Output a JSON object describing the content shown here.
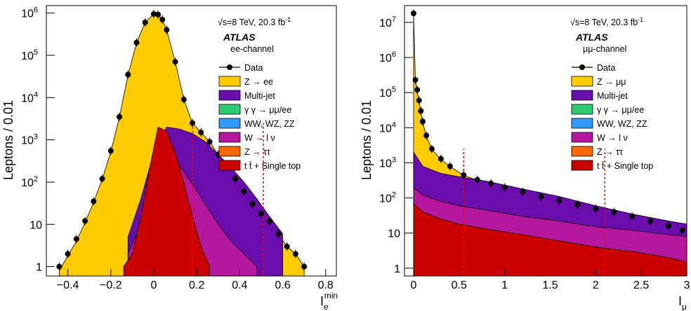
{
  "panels": [
    {
      "energy_label": "√s=8 TeV, 20.3 fb",
      "energy_sup": "-1",
      "atlas_label": "ATLAS",
      "channel_label": "ee-channel",
      "ylabel": "Leptons / 0.01",
      "xlabel": "I",
      "xlabel_sub": "e",
      "xlabel_sup": "min",
      "x_ticks": [
        "−0.4",
        "−0.2",
        "0",
        "0.2",
        "0.4",
        "0.6",
        "0.8"
      ],
      "y_ticks_base": [
        "1",
        "10",
        "10",
        "10",
        "10",
        "10",
        "10"
      ],
      "y_ticks_exp": [
        "",
        "",
        "2",
        "3",
        "4",
        "5",
        "6"
      ],
      "legend": [
        {
          "label": "Data",
          "kind": "marker"
        },
        {
          "label": "Z → ee",
          "kind": "box",
          "color": "#ffcc00"
        },
        {
          "label": "Multi-jet",
          "kind": "box",
          "color": "#6a0dad"
        },
        {
          "label": "γ γ  → μμ/ee",
          "kind": "box",
          "color": "#2ecc71"
        },
        {
          "label": "WW, WZ, ZZ",
          "kind": "box",
          "color": "#3399ff"
        },
        {
          "label": "W → l ν",
          "kind": "box",
          "color": "#b5179e"
        },
        {
          "label": "Z → ττ",
          "kind": "box",
          "color": "#ff6600"
        },
        {
          "label": "t t̄ + Single top",
          "kind": "box",
          "color": "#cc0000"
        }
      ]
    },
    {
      "energy_label": "√s=8 TeV, 20.3 fb",
      "energy_sup": "-1",
      "atlas_label": "ATLAS",
      "channel_label": "μμ-channel",
      "ylabel": "Leptons / 0.01",
      "xlabel": "I",
      "xlabel_sub": "μ",
      "xlabel_sup": "",
      "x_ticks": [
        "0",
        "0.5",
        "1",
        "1.5",
        "2",
        "2.5",
        "3"
      ],
      "y_ticks_base": [
        "1",
        "10",
        "10",
        "10",
        "10",
        "10",
        "10",
        "10"
      ],
      "y_ticks_exp": [
        "",
        "",
        "2",
        "3",
        "4",
        "5",
        "6",
        "7"
      ],
      "legend": [
        {
          "label": "Data",
          "kind": "marker"
        },
        {
          "label": "Z → μμ",
          "kind": "box",
          "color": "#ffcc00"
        },
        {
          "label": "Multi-jet",
          "kind": "box",
          "color": "#6a0dad"
        },
        {
          "label": "γ γ  → μμ/ee",
          "kind": "box",
          "color": "#2ecc71"
        },
        {
          "label": "WW, WZ, ZZ",
          "kind": "box",
          "color": "#3399ff"
        },
        {
          "label": "W → l ν",
          "kind": "box",
          "color": "#b5179e"
        },
        {
          "label": "Z → ττ",
          "kind": "box",
          "color": "#ff6600"
        },
        {
          "label": "t t̄ + Single top",
          "kind": "box",
          "color": "#cc0000"
        }
      ]
    }
  ],
  "chart_data": [
    {
      "type": "area",
      "scale": "log-y",
      "xlim": [
        -0.5,
        0.85
      ],
      "ylim": [
        0.6,
        1500000
      ],
      "cut_lines_x": [
        0.18,
        0.51
      ],
      "cut_line_color": "#ff0000",
      "data_points": {
        "x": [
          -0.44,
          -0.4,
          -0.36,
          -0.32,
          -0.28,
          -0.24,
          -0.2,
          -0.16,
          -0.12,
          -0.08,
          -0.04,
          0.0,
          0.02,
          0.04,
          0.06,
          0.1,
          0.14,
          0.18,
          0.22,
          0.26,
          0.3,
          0.34,
          0.38,
          0.42,
          0.46,
          0.5,
          0.54,
          0.58,
          0.62,
          0.66,
          0.7
        ],
        "y": [
          1.0,
          2.0,
          4.5,
          12,
          35,
          120,
          550,
          3500,
          35000,
          200000,
          600000,
          950000,
          920000,
          700000,
          400000,
          70000,
          9000,
          2500,
          1500,
          900,
          450,
          250,
          120,
          60,
          30,
          18,
          12,
          6,
          3,
          2,
          1
        ]
      },
      "stack_totals": {
        "x": [
          -0.44,
          -0.4,
          -0.36,
          -0.32,
          -0.28,
          -0.24,
          -0.2,
          -0.16,
          -0.12,
          -0.08,
          -0.04,
          0.0,
          0.02,
          0.04,
          0.06,
          0.1,
          0.14,
          0.18,
          0.22,
          0.26,
          0.3,
          0.34,
          0.38,
          0.42,
          0.46,
          0.5,
          0.54,
          0.58,
          0.62,
          0.66,
          0.7
        ],
        "y": [
          0.8,
          1.8,
          4.0,
          11,
          33,
          115,
          520,
          3400,
          34000,
          198000,
          600000,
          950000,
          920000,
          700000,
          400000,
          70000,
          9000,
          2500,
          1500,
          900,
          450,
          250,
          120,
          60,
          30,
          18,
          12,
          6,
          3,
          2,
          1
        ]
      },
      "backgrounds": [
        {
          "name": "Multi-jet",
          "color": "#6a0dad",
          "x": [
            -0.12,
            -0.06,
            0.0,
            0.06,
            0.12,
            0.18,
            0.24,
            0.3,
            0.36,
            0.42,
            0.48,
            0.54,
            0.6
          ],
          "y": [
            5,
            40,
            500,
            2000,
            1800,
            1400,
            900,
            450,
            220,
            100,
            40,
            15,
            6
          ]
        },
        {
          "name": "W → l ν",
          "color": "#b5179e",
          "x": [
            -0.12,
            -0.06,
            0.0,
            0.06,
            0.12,
            0.18,
            0.24,
            0.3,
            0.36,
            0.42,
            0.48
          ],
          "y": [
            2,
            10,
            150,
            400,
            250,
            90,
            30,
            10,
            4,
            2,
            1
          ]
        },
        {
          "name": "t t̄ + Single top",
          "color": "#cc0000",
          "x": [
            -0.14,
            -0.1,
            -0.06,
            -0.02,
            0.02,
            0.06,
            0.1,
            0.14,
            0.18,
            0.22,
            0.26
          ],
          "y": [
            1,
            2,
            15,
            200,
            2000,
            1600,
            500,
            100,
            15,
            3,
            1
          ]
        }
      ]
    },
    {
      "type": "area",
      "scale": "log-y",
      "xlim": [
        -0.1,
        3.0
      ],
      "ylim": [
        0.6,
        30000000
      ],
      "cut_lines_x": [
        0.55,
        2.1
      ],
      "cut_line_color": "#ff0000",
      "data_points": {
        "x": [
          0.0,
          0.02,
          0.04,
          0.06,
          0.08,
          0.1,
          0.14,
          0.2,
          0.3,
          0.4,
          0.55,
          0.7,
          0.85,
          1.0,
          1.2,
          1.4,
          1.6,
          1.8,
          2.0,
          2.2,
          2.4,
          2.6,
          2.8,
          2.95
        ],
        "y": [
          18000000,
          230000,
          120000,
          60000,
          30000,
          15000,
          6000,
          2500,
          1300,
          800,
          450,
          330,
          260,
          200,
          150,
          110,
          85,
          65,
          50,
          40,
          30,
          22,
          16,
          12
        ]
      },
      "stack_totals": {
        "x": [
          0.0,
          0.02,
          0.04,
          0.06,
          0.08,
          0.1,
          0.14,
          0.2,
          0.3,
          0.4,
          0.55,
          0.7,
          0.85,
          1.0,
          1.2,
          1.4,
          1.6,
          1.8,
          2.0,
          2.2,
          2.4,
          2.6,
          2.8,
          2.95
        ],
        "y": [
          18000000,
          220000,
          110000,
          55000,
          28000,
          14000,
          5800,
          2400,
          1250,
          780,
          440,
          320,
          250,
          195,
          145,
          105,
          82,
          62,
          48,
          38,
          29,
          21,
          15,
          11
        ]
      },
      "backgrounds": [
        {
          "name": "Multi-jet",
          "color": "#6a0dad",
          "x": [
            0.0,
            0.1,
            0.3,
            0.5,
            0.8,
            1.2,
            1.6,
            2.0,
            2.4,
            2.8,
            3.0
          ],
          "y": [
            2000,
            800,
            500,
            400,
            300,
            180,
            110,
            60,
            35,
            22,
            18
          ]
        },
        {
          "name": "W → l ν",
          "color": "#b5179e",
          "x": [
            0.0,
            0.1,
            0.3,
            0.5,
            0.8,
            1.2,
            1.6,
            2.0,
            2.4,
            2.8,
            3.0
          ],
          "y": [
            200,
            120,
            80,
            60,
            45,
            30,
            22,
            15,
            12,
            9,
            8
          ]
        },
        {
          "name": "t t̄ + Single top",
          "color": "#cc0000",
          "x": [
            0.0,
            0.1,
            0.3,
            0.5,
            0.8,
            1.2,
            1.6,
            2.0,
            2.4,
            2.8,
            3.0
          ],
          "y": [
            70,
            40,
            25,
            18,
            13,
            9,
            6,
            4,
            3,
            2,
            1.5
          ]
        }
      ]
    }
  ]
}
